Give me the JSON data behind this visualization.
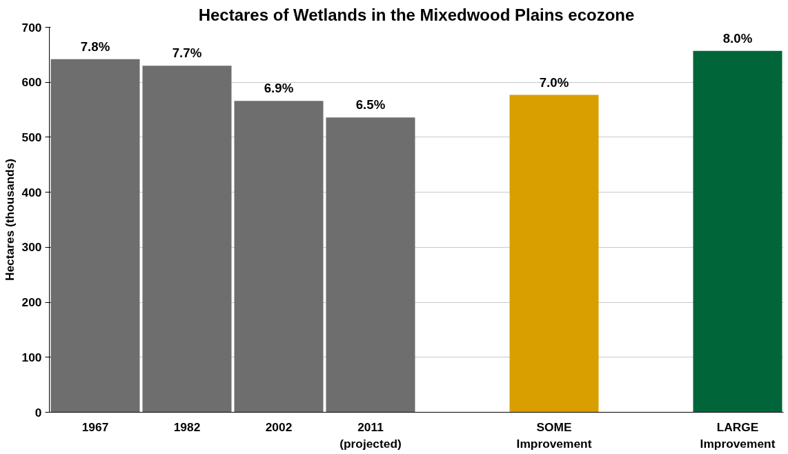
{
  "chart_data": {
    "type": "bar",
    "title": "Hectares of Wetlands in the Mixedwood Plains ecozone",
    "ylabel": "Hectares (thousands)",
    "categories": [
      "1967",
      "1982",
      "2002",
      "2011\n(projected)",
      null,
      "SOME\nImprovement",
      null,
      "LARGE\nImprovement"
    ],
    "values": [
      642,
      630,
      566,
      536,
      null,
      577,
      null,
      657
    ],
    "colors": [
      "#6e6e6e",
      "#6e6e6e",
      "#6e6e6e",
      "#6e6e6e",
      null,
      "#d99e00",
      null,
      "#00663a"
    ],
    "annotations": [
      {
        "text": "7.8%",
        "x": "1967",
        "y": 642
      },
      {
        "text": "7.7%",
        "x": "1982",
        "y": 630
      },
      {
        "text": "6.9%",
        "x": "2002",
        "y": 566
      },
      {
        "text": "6.5%",
        "x": "2011\n(projected)",
        "y": 536
      },
      {
        "text": "7.0%",
        "x": "SOME\nImprovement",
        "y": 577
      },
      {
        "text": "8.0%",
        "x": "LARGE\nImprovement",
        "y": 657
      }
    ],
    "ylim": [
      0,
      700
    ],
    "yticks": [
      0,
      100,
      200,
      300,
      400,
      500,
      600,
      700
    ],
    "grid": "y"
  }
}
